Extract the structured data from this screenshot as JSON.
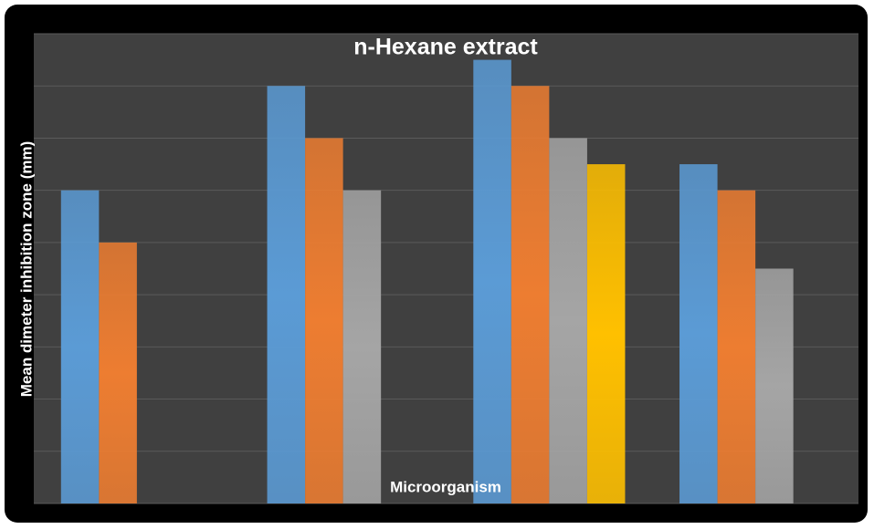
{
  "chart_data": {
    "type": "bar",
    "title": "n-Hexane extract",
    "x_label": "Microorganism",
    "y_label": "Mean dimeter inhibition zone (mm)",
    "categories": [
      null,
      null,
      null,
      null
    ],
    "series": [
      {
        "color": "#5b9bd5",
        "values": [
          6,
          8,
          8.5,
          6.5
        ]
      },
      {
        "color": "#ed7d31",
        "values": [
          5,
          7,
          8,
          6
        ]
      },
      {
        "color": "#a5a5a5",
        "values": [
          null,
          6,
          7,
          4.5
        ]
      },
      {
        "color": "#ffc000",
        "values": [
          null,
          null,
          6.5,
          null
        ]
      }
    ],
    "ylim": [
      0,
      9
    ],
    "yticks": [
      0,
      1,
      2,
      3,
      4,
      5,
      6,
      7,
      8,
      9
    ],
    "grid": true
  }
}
